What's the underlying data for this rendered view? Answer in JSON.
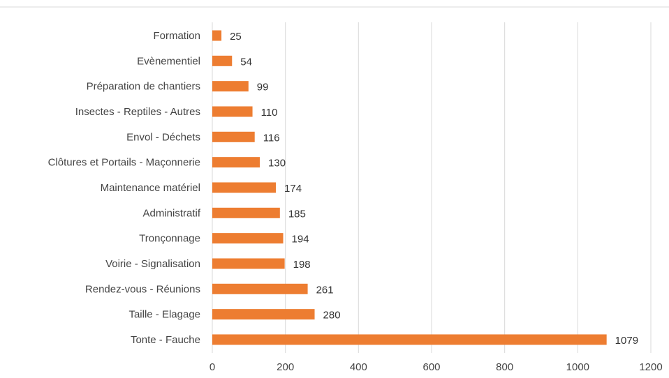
{
  "chart_data": {
    "type": "bar",
    "orientation": "horizontal",
    "categories": [
      "Formation",
      "Evènementiel",
      "Préparation de chantiers",
      "Insectes - Reptiles - Autres",
      "Envol - Déchets",
      "Clôtures et Portails - Maçonnerie",
      "Maintenance matériel",
      "Administratif",
      "Tronçonnage",
      "Voirie - Signalisation",
      "Rendez-vous - Réunions",
      "Taille - Elagage",
      "Tonte - Fauche"
    ],
    "values": [
      25,
      54,
      99,
      110,
      116,
      130,
      174,
      185,
      194,
      198,
      261,
      280,
      1079
    ],
    "xlim": [
      0,
      1200
    ],
    "xticks": [
      "0",
      "200",
      "400",
      "600",
      "800",
      "1000",
      "1200"
    ],
    "grid": "vertical",
    "legend": "none",
    "bar_color": "#ed7d31",
    "grid_color": "#d9d9d9"
  }
}
